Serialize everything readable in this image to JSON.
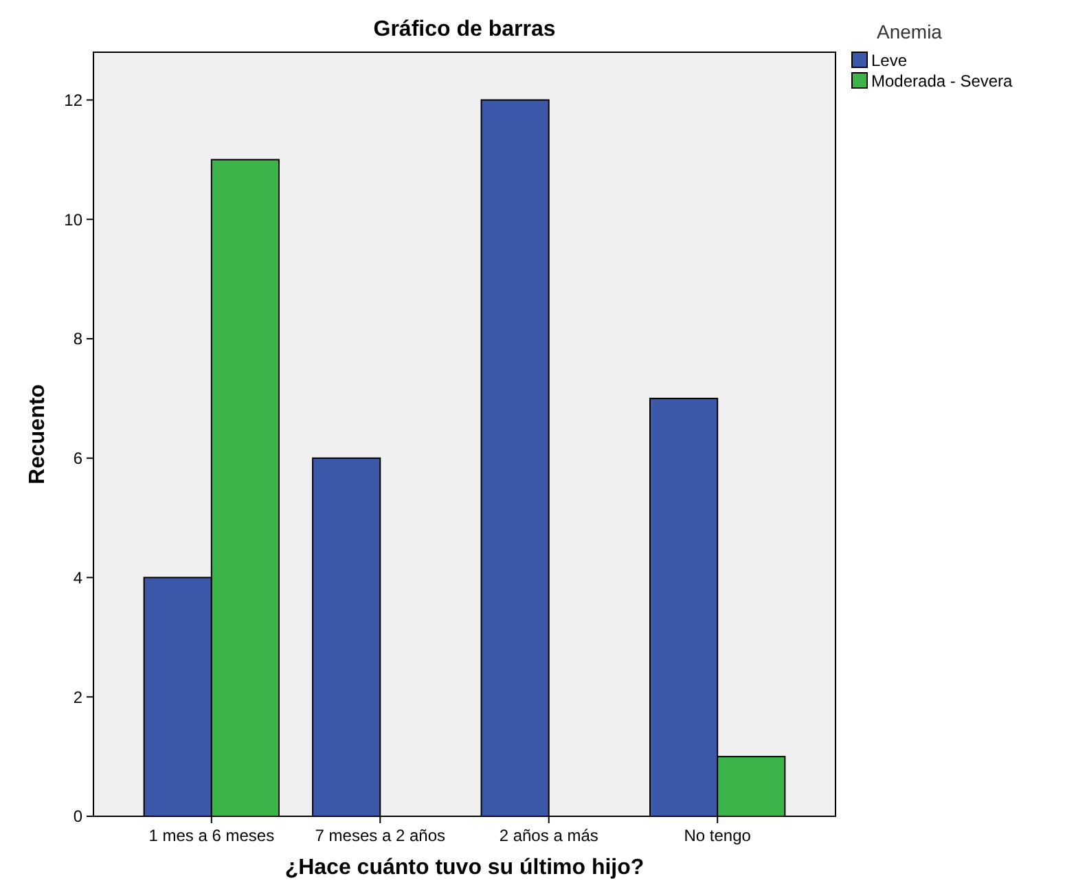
{
  "chart_data": {
    "type": "bar",
    "title": "Gráfico de barras",
    "xlabel": "¿Hace cuánto  tuvo su último hijo?",
    "ylabel": "Recuento",
    "legend_title": "Anemia",
    "categories": [
      "1 mes a 6 meses",
      "7 meses a 2 años",
      "2 años a más",
      "No tengo"
    ],
    "series": [
      {
        "name": "Leve",
        "color": "#3c58a8",
        "values": [
          4,
          6,
          12,
          7
        ]
      },
      {
        "name": "Moderada - Severa",
        "color": "#3cb44a",
        "values": [
          11,
          null,
          null,
          1
        ]
      }
    ],
    "ylim": [
      0,
      12.8
    ],
    "yticks": [
      0,
      2,
      4,
      6,
      8,
      10,
      12
    ],
    "grid": false,
    "legend": "top right"
  }
}
